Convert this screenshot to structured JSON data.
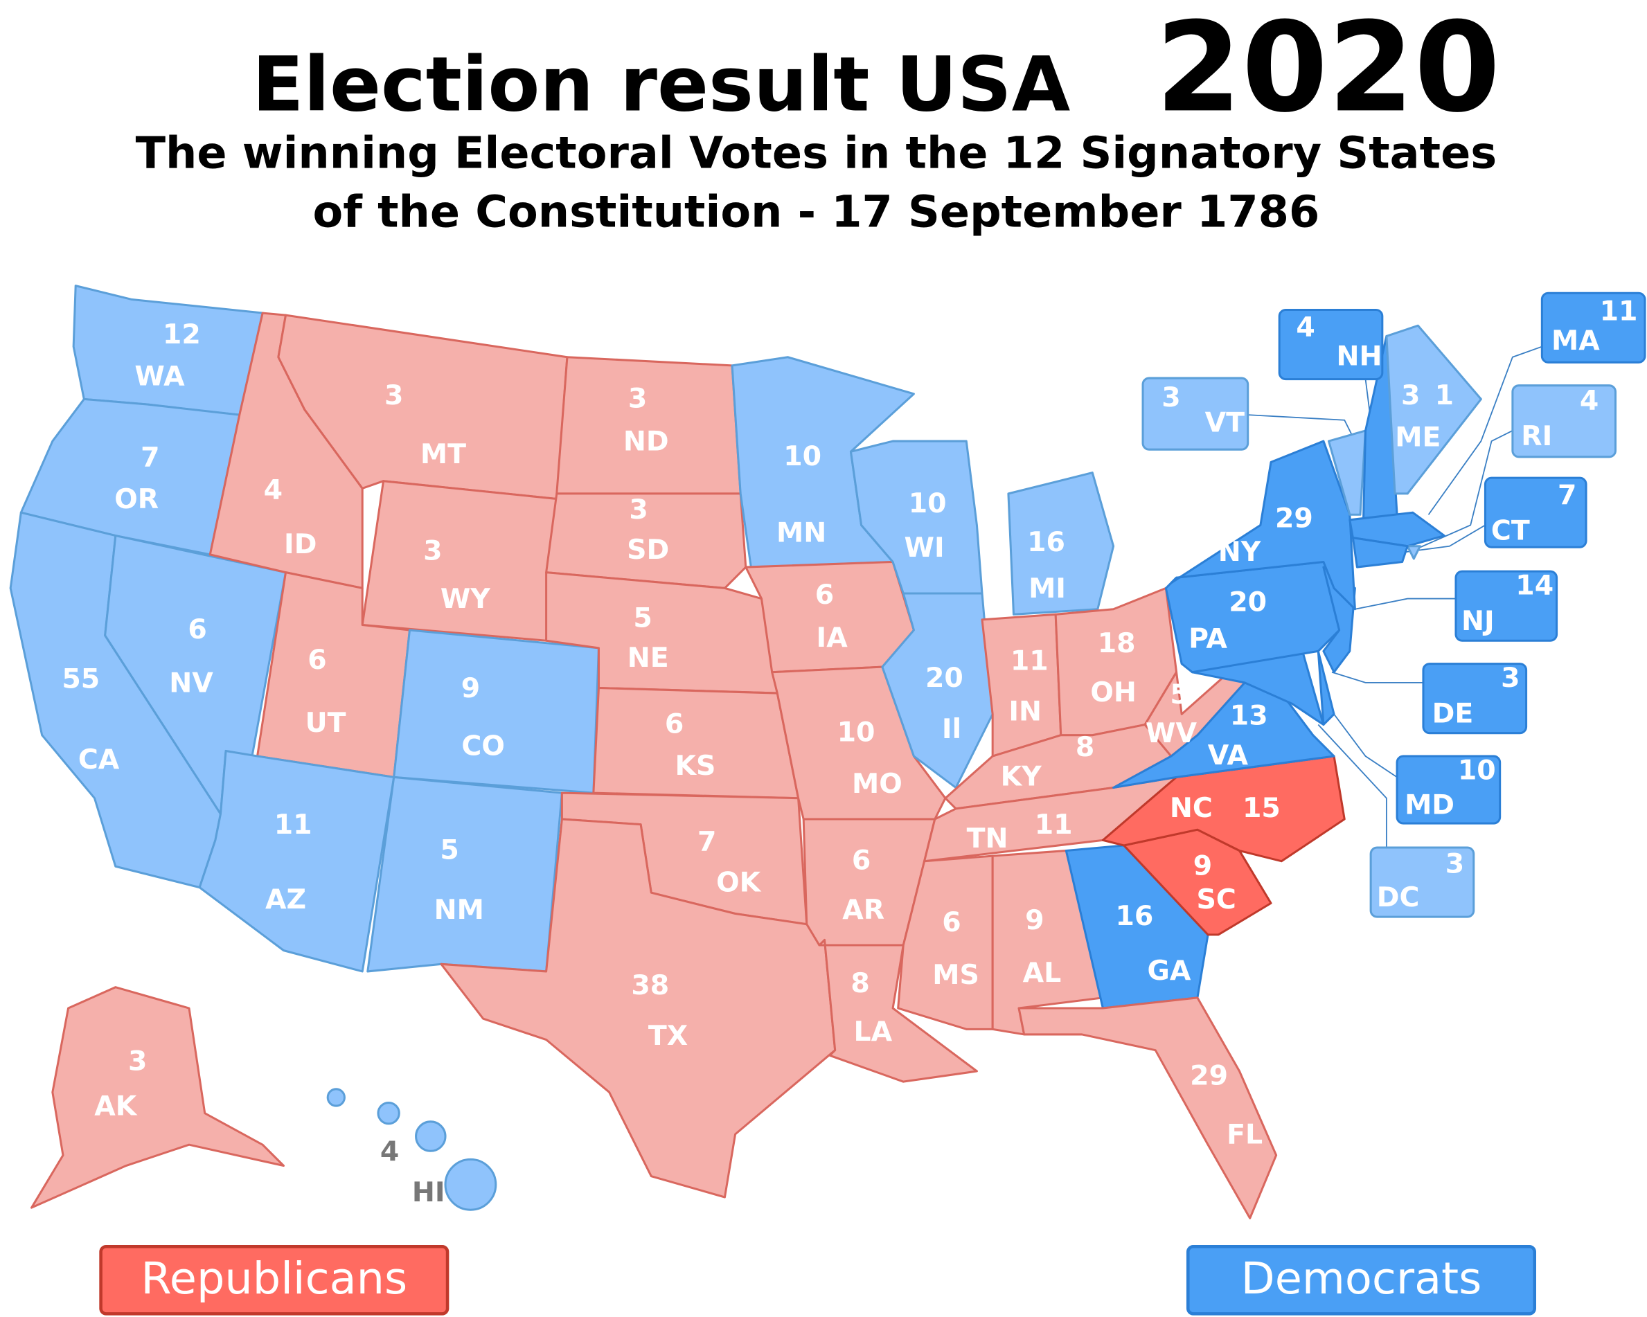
{
  "title": {
    "main": "Election result USA",
    "year": "2020"
  },
  "subtitle": [
    "The winning Electoral Votes in the 12 Signatory States",
    "of the Constitution - 17 September 1786"
  ],
  "states": [
    {
      "abbr": "WA",
      "votes": 12,
      "color": "#8fc3fc"
    },
    {
      "abbr": "OR",
      "votes": 7,
      "color": "#8fc3fc"
    },
    {
      "abbr": "CA",
      "votes": 55,
      "color": "#8fc3fc"
    },
    {
      "abbr": "NV",
      "votes": 6,
      "color": "#8fc3fc"
    },
    {
      "abbr": "ID",
      "votes": 4,
      "color": "#f5b0ab"
    },
    {
      "abbr": "MT",
      "votes": 3,
      "color": "#f5b0ab"
    },
    {
      "abbr": "WY",
      "votes": 3,
      "color": "#f5b0ab"
    },
    {
      "abbr": "UT",
      "votes": 6,
      "color": "#f5b0ab"
    },
    {
      "abbr": "CO",
      "votes": 9,
      "color": "#8fc3fc"
    },
    {
      "abbr": "AZ",
      "votes": 11,
      "color": "#8fc3fc"
    },
    {
      "abbr": "NM",
      "votes": 5,
      "color": "#8fc3fc"
    },
    {
      "abbr": "ND",
      "votes": 3,
      "color": "#f5b0ab"
    },
    {
      "abbr": "SD",
      "votes": 3,
      "color": "#f5b0ab"
    },
    {
      "abbr": "NE",
      "votes": 5,
      "color": "#f5b0ab"
    },
    {
      "abbr": "KS",
      "votes": 6,
      "color": "#f5b0ab"
    },
    {
      "abbr": "OK",
      "votes": 7,
      "color": "#f5b0ab"
    },
    {
      "abbr": "TX",
      "votes": 38,
      "color": "#f5b0ab"
    },
    {
      "abbr": "MN",
      "votes": 10,
      "color": "#8fc3fc"
    },
    {
      "abbr": "IA",
      "votes": 6,
      "color": "#f5b0ab"
    },
    {
      "abbr": "MO",
      "votes": 10,
      "color": "#f5b0ab"
    },
    {
      "abbr": "AR",
      "votes": 6,
      "color": "#f5b0ab"
    },
    {
      "abbr": "LA",
      "votes": 8,
      "color": "#f5b0ab"
    },
    {
      "abbr": "WI",
      "votes": 10,
      "color": "#8fc3fc"
    },
    {
      "abbr": "Il",
      "votes": 20,
      "color": "#8fc3fc"
    },
    {
      "abbr": "MI",
      "votes": 16,
      "color": "#8fc3fc"
    },
    {
      "abbr": "IN",
      "votes": 11,
      "color": "#f5b0ab"
    },
    {
      "abbr": "OH",
      "votes": 18,
      "color": "#f5b0ab"
    },
    {
      "abbr": "KY",
      "votes": 8,
      "color": "#f5b0ab"
    },
    {
      "abbr": "TN",
      "votes": 11,
      "color": "#f5b0ab"
    },
    {
      "abbr": "WV",
      "votes": 5,
      "color": "#f5b0ab"
    },
    {
      "abbr": "MS",
      "votes": 6,
      "color": "#f5b0ab"
    },
    {
      "abbr": "AL",
      "votes": 9,
      "color": "#f5b0ab"
    },
    {
      "abbr": "GA",
      "votes": 16,
      "color": "#4a9ff5"
    },
    {
      "abbr": "FL",
      "votes": 29,
      "color": "#f5b0ab"
    },
    {
      "abbr": "SC",
      "votes": 9,
      "color": "#ff6b61"
    },
    {
      "abbr": "NC",
      "votes": 15,
      "color": "#ff6b61"
    },
    {
      "abbr": "VA",
      "votes": 13,
      "color": "#4a9ff5"
    },
    {
      "abbr": "MD",
      "votes": 10,
      "color": "#4a9ff5"
    },
    {
      "abbr": "DE",
      "votes": 3,
      "color": "#4a9ff5"
    },
    {
      "abbr": "PA",
      "votes": 20,
      "color": "#4a9ff5"
    },
    {
      "abbr": "NJ",
      "votes": 14,
      "color": "#4a9ff5"
    },
    {
      "abbr": "NY",
      "votes": 29,
      "color": "#4a9ff5"
    },
    {
      "abbr": "VT",
      "votes": 3,
      "color": "#8fc3fc"
    },
    {
      "abbr": "NH",
      "votes": 4,
      "color": "#4a9ff5"
    },
    {
      "abbr": "ME",
      "votes": [
        3,
        1
      ],
      "color": "#8fc3fc"
    },
    {
      "abbr": "MA",
      "votes": 11,
      "color": "#4a9ff5"
    },
    {
      "abbr": "RI",
      "votes": 4,
      "color": "#8fc3fc"
    },
    {
      "abbr": "CT",
      "votes": 7,
      "color": "#4a9ff5"
    },
    {
      "abbr": "DC",
      "votes": 3,
      "color": "#8fc3fc"
    },
    {
      "abbr": "AK",
      "votes": 3,
      "color": "#f5b0ab"
    },
    {
      "abbr": "HI",
      "votes": 4,
      "color": "#8fc3fc"
    }
  ],
  "legend": [
    {
      "label": "Republicans",
      "color": "#ff6b61"
    },
    {
      "label": "Democrats",
      "color": "#4a9ff5"
    }
  ]
}
